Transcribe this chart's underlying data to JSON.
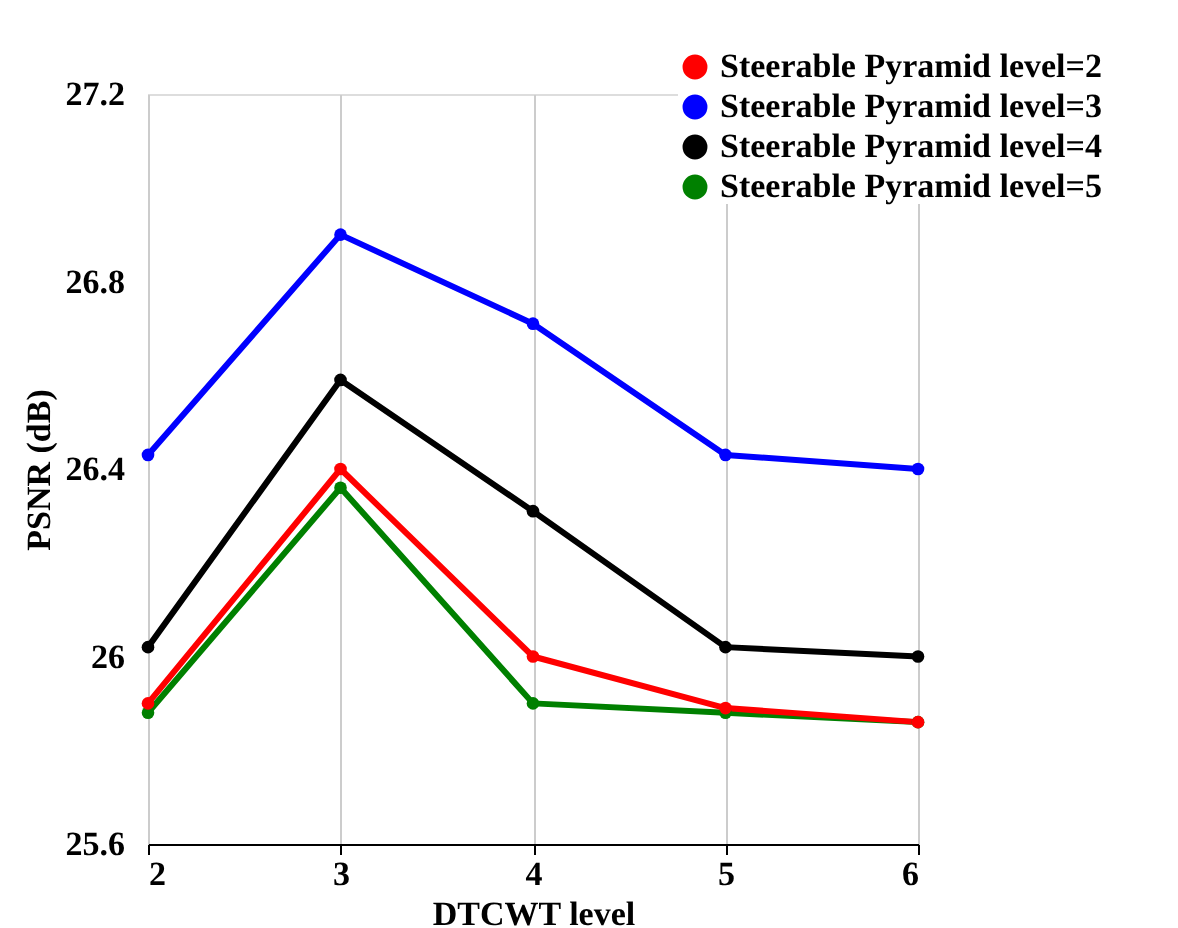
{
  "chart_data": {
    "type": "line",
    "xlabel": "DTCWT level",
    "ylabel": "PSNR (dB)",
    "x": [
      2,
      3,
      4,
      5,
      6
    ],
    "xlim": [
      2,
      6
    ],
    "xticks": [
      2,
      3,
      4,
      5,
      6
    ],
    "ylim": [
      25.6,
      27.2
    ],
    "yticks": [
      25.6,
      26,
      26.4,
      26.8,
      27.2
    ],
    "grid": "x",
    "legend": "top right",
    "marker": "circle",
    "line_style": "solid",
    "series": [
      {
        "name": "Steerable Pyramid level=2",
        "color": "#ff0000",
        "values": [
          25.9,
          26.4,
          26.0,
          25.89,
          25.86
        ]
      },
      {
        "name": "Steerable Pyramid level=3",
        "color": "#0000ff",
        "values": [
          26.43,
          26.9,
          26.71,
          26.43,
          26.4
        ]
      },
      {
        "name": "Steerable Pyramid level=4",
        "color": "#000000",
        "values": [
          26.02,
          26.59,
          26.31,
          26.02,
          26.0
        ]
      },
      {
        "name": "Steerable Pyramid level=5",
        "color": "#008000",
        "values": [
          25.88,
          26.36,
          25.9,
          25.88,
          25.86
        ]
      }
    ]
  }
}
